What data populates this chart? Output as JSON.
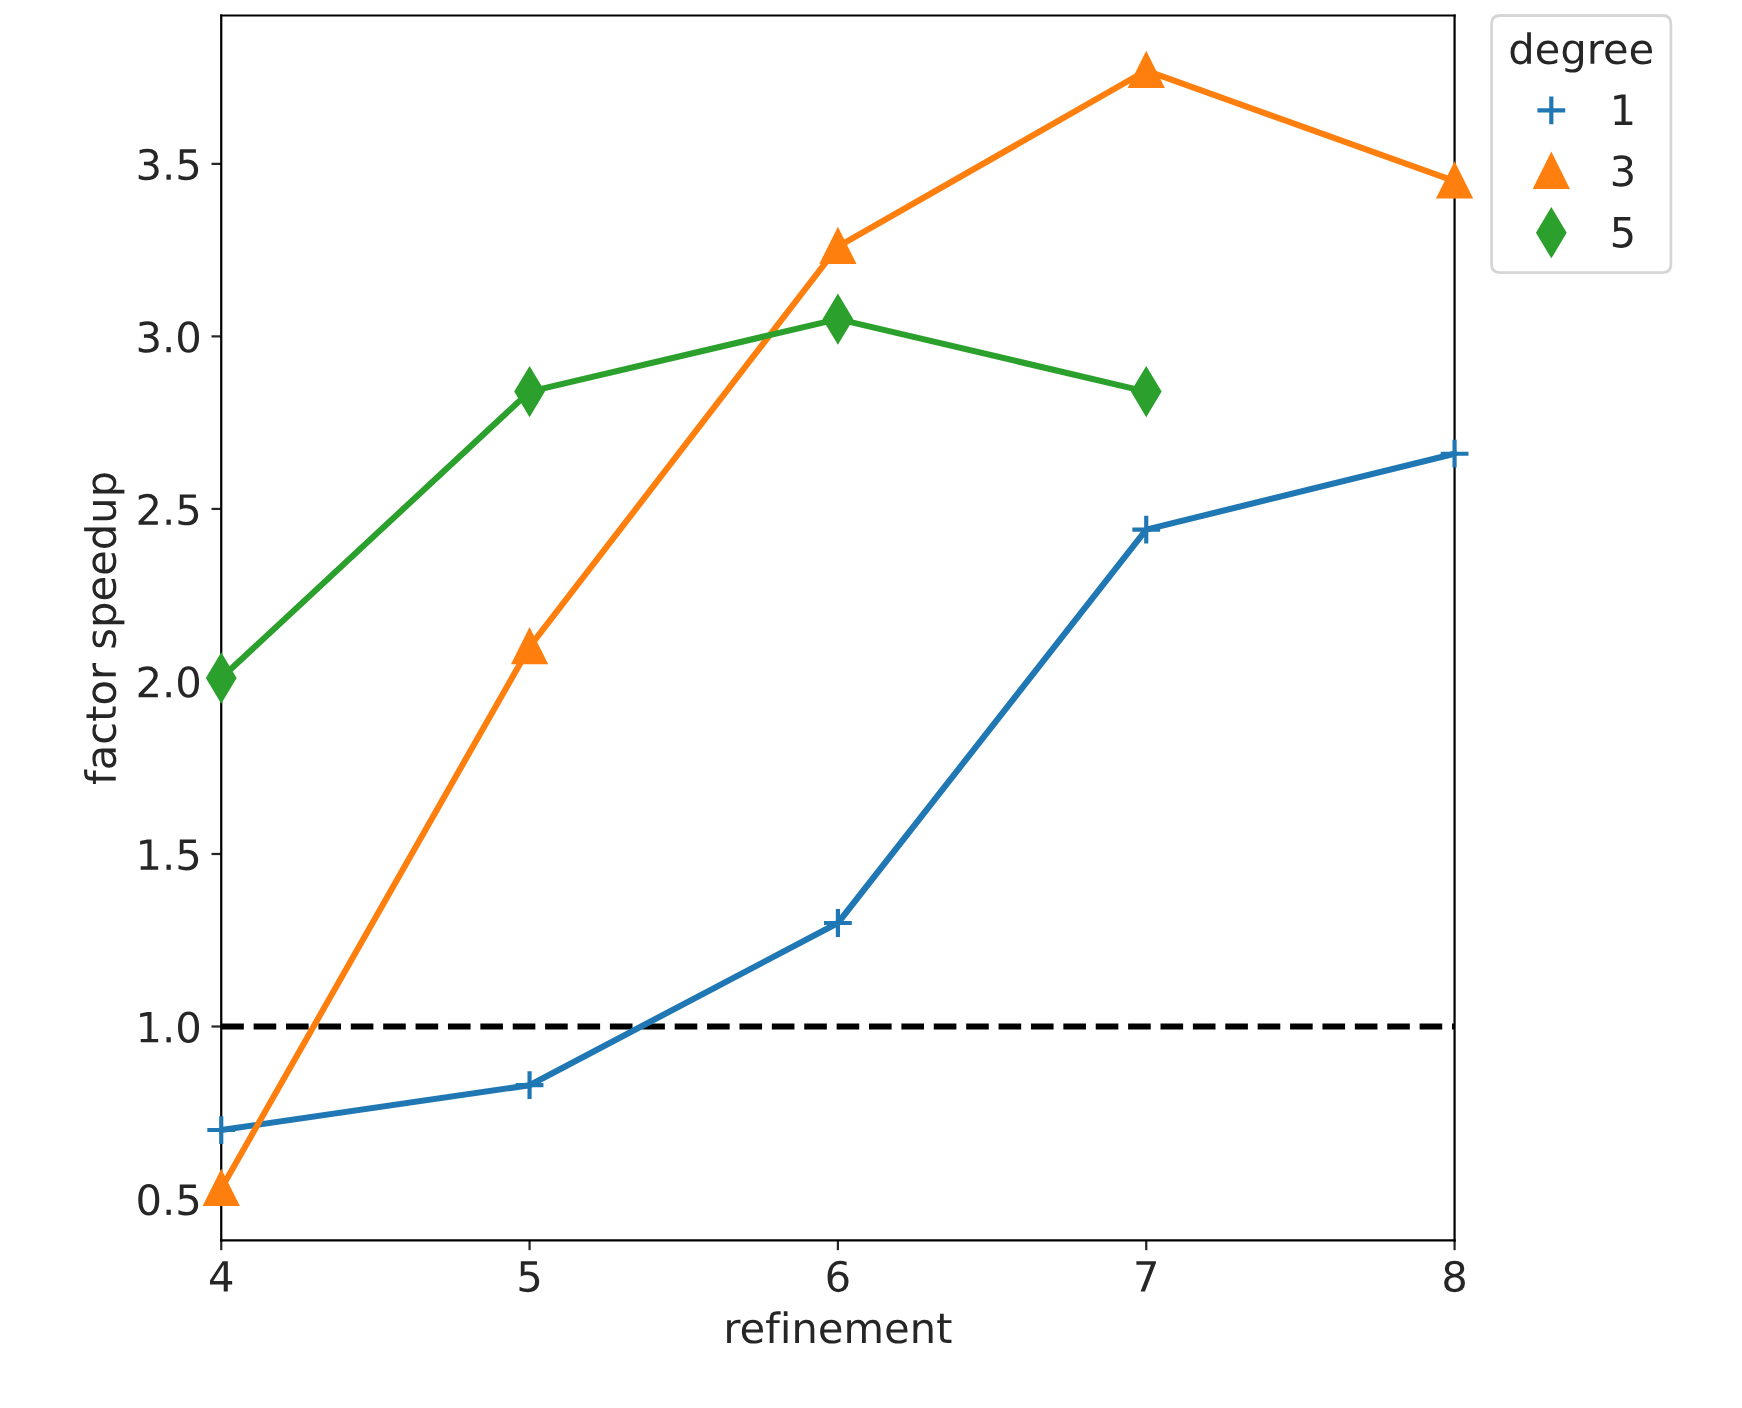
{
  "chart_data": {
    "type": "line",
    "xlabel": "refinement",
    "ylabel": "factor speedup",
    "legend_title": "degree",
    "legend": "top right",
    "grid": false,
    "x": [
      4,
      5,
      6,
      7,
      8
    ],
    "series": [
      {
        "name": "1",
        "color": "#1f77b4",
        "marker": "cross",
        "values": [
          0.7,
          0.83,
          1.3,
          2.44,
          2.66
        ]
      },
      {
        "name": "3",
        "color": "#ff7f0e",
        "marker": "triangle",
        "values": [
          0.53,
          2.1,
          3.26,
          3.77,
          3.45
        ]
      },
      {
        "name": "5",
        "color": "#2ca02c",
        "marker": "diamond",
        "values": [
          2.01,
          2.84,
          3.05,
          2.84,
          null
        ]
      }
    ],
    "xlim": [
      4,
      8
    ],
    "xticks": [
      4,
      5,
      6,
      7,
      8
    ],
    "ylim": [
      0.38,
      3.93
    ],
    "yticks": [
      0.5,
      {
        "value": 1,
        "label": "1.0"
      },
      1.5,
      {
        "value": 2,
        "label": "2.0"
      },
      2.5,
      {
        "value": 3,
        "label": "3.0"
      },
      3.5
    ],
    "ref_lines": [
      {
        "axis": "y",
        "value": 1.0,
        "color": "#000000",
        "line_style": "dashed"
      }
    ]
  }
}
